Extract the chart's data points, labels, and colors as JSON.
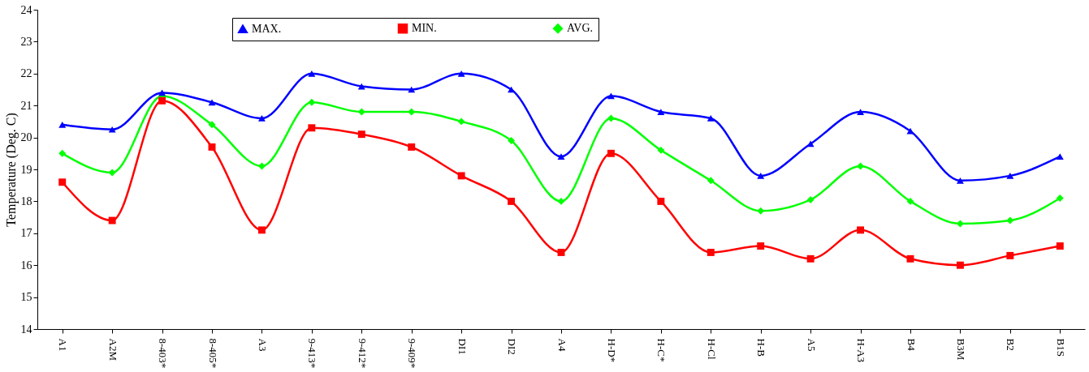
{
  "chart_data": {
    "type": "line",
    "ylabel": "Temperature (Deg. C)",
    "categories": [
      "A1",
      "A2M",
      "8-403*",
      "8-405*",
      "A3",
      "9-413*",
      "9-412*",
      "9-409*",
      "DI1",
      "DI2",
      "A4",
      "H-D*",
      "H-C*",
      "H-Cl",
      "H-B",
      "A5",
      "H-A3",
      "B4",
      "B3M",
      "B2",
      "B1S"
    ],
    "series": [
      {
        "name": "MAX.",
        "color": "#0000ff",
        "marker": "triangle",
        "values": [
          20.4,
          20.25,
          21.4,
          21.1,
          20.6,
          22.0,
          21.6,
          21.5,
          22.0,
          21.5,
          19.4,
          21.3,
          20.8,
          20.6,
          18.8,
          19.8,
          20.8,
          20.2,
          18.65,
          18.8,
          19.4
        ]
      },
      {
        "name": "MIN.",
        "color": "#ff0000",
        "marker": "square",
        "values": [
          18.6,
          17.4,
          21.15,
          19.7,
          17.1,
          20.3,
          20.1,
          19.7,
          18.8,
          18.0,
          16.4,
          19.5,
          18.0,
          16.4,
          16.6,
          16.2,
          17.1,
          16.2,
          16.0,
          16.3,
          16.6
        ]
      },
      {
        "name": "AVG.",
        "color": "#00ff00",
        "marker": "diamond",
        "values": [
          19.5,
          18.9,
          21.3,
          20.4,
          19.1,
          21.1,
          20.8,
          20.8,
          20.5,
          19.9,
          18.0,
          20.6,
          19.6,
          18.65,
          17.7,
          18.05,
          19.1,
          18.0,
          17.3,
          17.4,
          18.1
        ]
      }
    ],
    "ylim": [
      14,
      24
    ],
    "yticks": [
      14,
      15,
      16,
      17,
      18,
      19,
      20,
      21,
      22,
      23,
      24
    ],
    "grid": false,
    "legend": "top",
    "line_style": "solid"
  }
}
